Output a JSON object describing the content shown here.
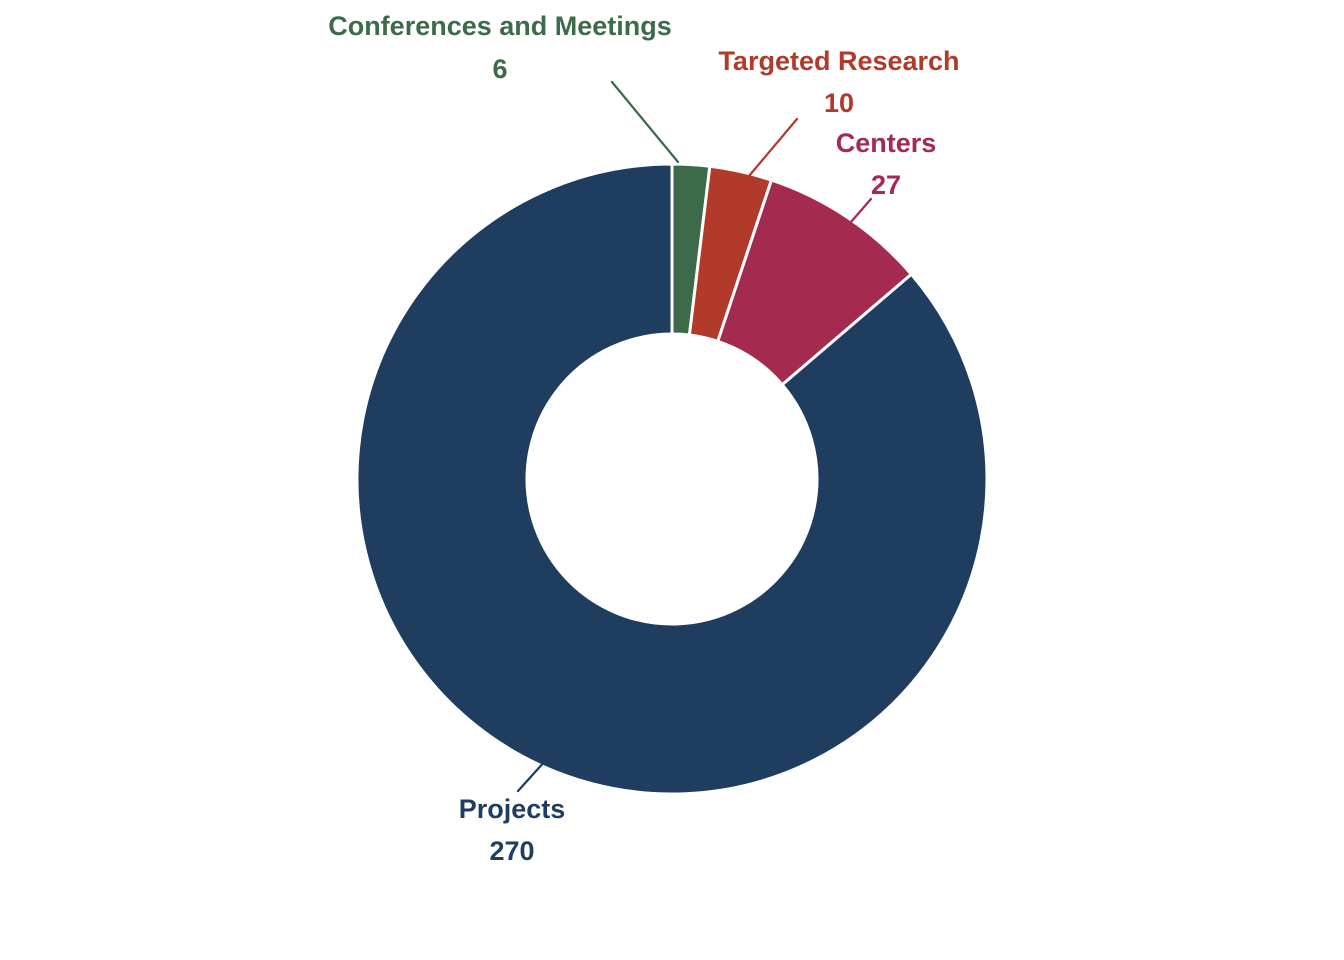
{
  "chart_data": {
    "type": "pie",
    "variant": "donut",
    "title": "",
    "legend": "none",
    "direction": "clockwise",
    "start_angle_deg": 0,
    "inner_radius_ratio": 0.46,
    "categories": [
      "Conferences and Meetings",
      "Targeted Research",
      "Centers",
      "Projects"
    ],
    "values": [
      6,
      10,
      27,
      270
    ],
    "colors": [
      "#3d6b4a",
      "#b13a2b",
      "#a52a4f",
      "#1e3d5f"
    ],
    "label_format": "name_over_value",
    "background": "#ffffff",
    "slice_gap_color": "#ffffff"
  }
}
